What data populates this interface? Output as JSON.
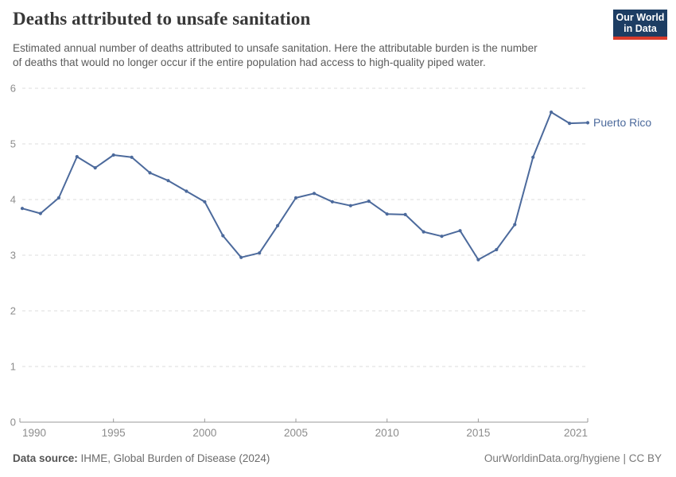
{
  "header": {
    "title": "Deaths attributed to unsafe sanitation",
    "subtitle_lines": [
      "Estimated annual number of deaths attributed to unsafe sanitation. Here the attributable burden is the number",
      "of deaths that would no longer occur if the entire population had access to high-quality piped water."
    ]
  },
  "logo": {
    "line1": "Our World",
    "line2": "in Data",
    "bg_color": "#1d3d63",
    "accent_color": "#d93b2b"
  },
  "chart_data": {
    "type": "line",
    "title": "Deaths attributed to unsafe sanitation",
    "xlabel": "",
    "ylabel": "",
    "xlim": [
      1990,
      2021
    ],
    "ylim": [
      0,
      6
    ],
    "yticks": [
      0,
      1,
      2,
      3,
      4,
      5,
      6
    ],
    "xticks": [
      1990,
      1995,
      2000,
      2005,
      2010,
      2015,
      2021
    ],
    "grid": "horizontal-dashed",
    "legend_position": "line-end-label",
    "series": [
      {
        "name": "Puerto Rico",
        "color": "#4C6A9C",
        "x": [
          1990,
          1991,
          1992,
          1993,
          1994,
          1995,
          1996,
          1997,
          1998,
          1999,
          2000,
          2001,
          2002,
          2003,
          2004,
          2005,
          2006,
          2007,
          2008,
          2009,
          2010,
          2011,
          2012,
          2013,
          2014,
          2015,
          2016,
          2017,
          2018,
          2019,
          2020,
          2021
        ],
        "values": [
          3.84,
          3.75,
          4.03,
          4.77,
          4.57,
          4.8,
          4.76,
          4.48,
          4.34,
          4.15,
          3.96,
          3.35,
          2.96,
          3.04,
          3.53,
          4.03,
          4.11,
          3.96,
          3.89,
          3.97,
          3.74,
          3.73,
          3.42,
          3.34,
          3.44,
          2.92,
          3.1,
          3.55,
          4.76,
          5.57,
          5.37,
          5.38
        ]
      }
    ],
    "colors": {
      "line": "#4C6A9C",
      "gridline": "#dcdcdc",
      "axis": "#999999",
      "tick_label": "#8c8c8c"
    }
  },
  "footer": {
    "datasource_label": "Data source:",
    "datasource_value": " IHME, Global Burden of Disease (2024)",
    "credit": "OurWorldinData.org/hygiene | CC BY"
  }
}
